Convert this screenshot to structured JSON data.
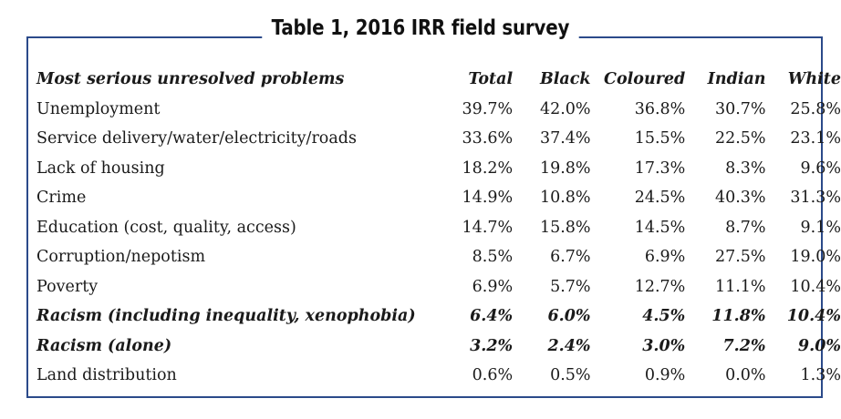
{
  "title": "Table 1, 2016 IRR field survey",
  "columns": [
    "Most serious unresolved problems",
    "Total",
    "Black",
    "Coloured",
    "Indian",
    "White"
  ],
  "rows": [
    {
      "label": "Unemployment",
      "values": [
        "39.7%",
        "42.0%",
        "36.8%",
        "30.7%",
        "25.8%"
      ],
      "emphasis": false
    },
    {
      "label": "Service delivery/water/electricity/roads",
      "values": [
        "33.6%",
        "37.4%",
        "15.5%",
        "22.5%",
        "23.1%"
      ],
      "emphasis": false
    },
    {
      "label": "Lack of housing",
      "values": [
        "18.2%",
        "19.8%",
        "17.3%",
        "8.3%",
        "9.6%"
      ],
      "emphasis": false
    },
    {
      "label": "Crime",
      "values": [
        "14.9%",
        "10.8%",
        "24.5%",
        "40.3%",
        "31.3%"
      ],
      "emphasis": false
    },
    {
      "label": "Education (cost, quality, access)",
      "values": [
        "14.7%",
        "15.8%",
        "14.5%",
        "8.7%",
        "9.1%"
      ],
      "emphasis": false
    },
    {
      "label": "Corruption/nepotism",
      "values": [
        "8.5%",
        "6.7%",
        "6.9%",
        "27.5%",
        "19.0%"
      ],
      "emphasis": false
    },
    {
      "label": "Poverty",
      "values": [
        "6.9%",
        "5.7%",
        "12.7%",
        "11.1%",
        "10.4%"
      ],
      "emphasis": false
    },
    {
      "label": "Racism (including inequality, xenophobia)",
      "values": [
        "6.4%",
        "6.0%",
        "4.5%",
        "11.8%",
        "10.4%"
      ],
      "emphasis": true
    },
    {
      "label": "Racism (alone)",
      "values": [
        "3.2%",
        "2.4%",
        "3.0%",
        "7.2%",
        "9.0%"
      ],
      "emphasis": true
    },
    {
      "label": "Land distribution",
      "values": [
        "0.6%",
        "0.5%",
        "0.9%",
        "0.0%",
        "1.3%"
      ],
      "emphasis": false
    }
  ],
  "colors": {
    "frame": "#2b4a8a",
    "text": "#1a1a1a"
  }
}
